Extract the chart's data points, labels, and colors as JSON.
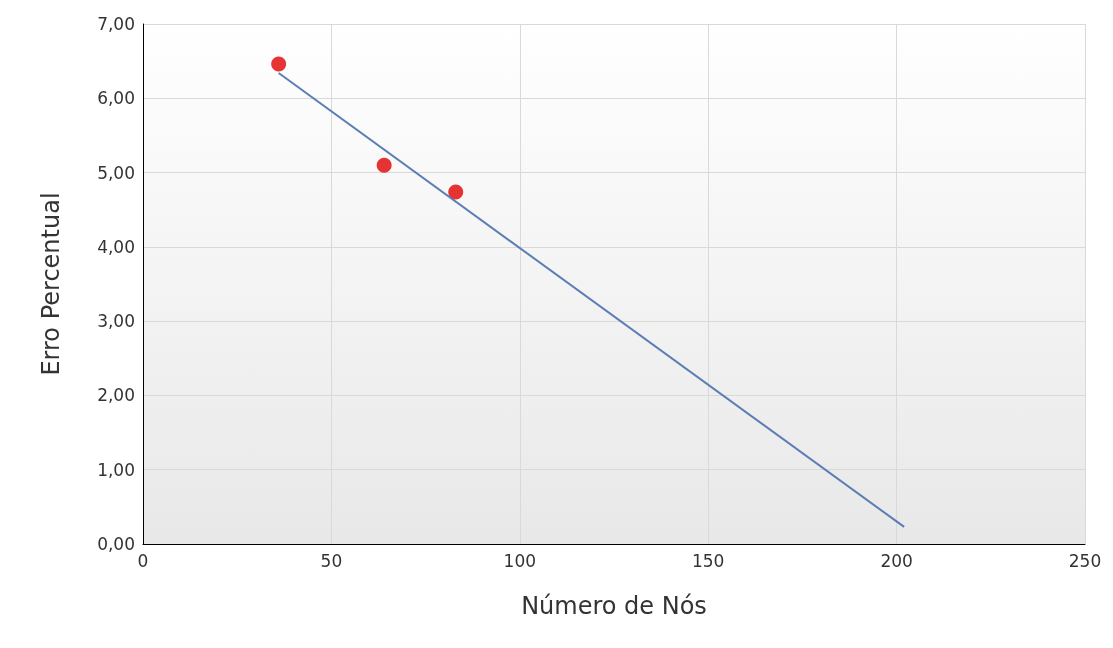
{
  "chart_data": {
    "type": "scatter",
    "xlabel": "Número de Nós",
    "ylabel": "Erro Percentual",
    "series": [
      {
        "color": "#e00000",
        "x": [
          36,
          64,
          83
        ],
        "values": [
          6.46,
          5.1,
          4.74
        ],
        "marker": "circle"
      },
      {
        "type": "line",
        "color": "#5b7db5",
        "x": [
          36,
          202
        ],
        "values": [
          6.34,
          0.23
        ],
        "marker": "none",
        "line_style": "solid"
      }
    ],
    "xlim": [
      0,
      250
    ],
    "xticks": [
      0,
      50,
      100,
      150,
      200,
      250
    ],
    "ylim": [
      0,
      7
    ],
    "yticks": [
      {
        "value": 0,
        "label": "0,00"
      },
      {
        "value": 1,
        "label": "1,00"
      },
      {
        "value": 2,
        "label": "2,00"
      },
      {
        "value": 3,
        "label": "3,00"
      },
      {
        "value": 4,
        "label": "4,00"
      },
      {
        "value": 5,
        "label": "5,00"
      },
      {
        "value": 6,
        "label": "6,00"
      },
      {
        "value": 7,
        "label": "7,00"
      }
    ],
    "grid": true
  }
}
